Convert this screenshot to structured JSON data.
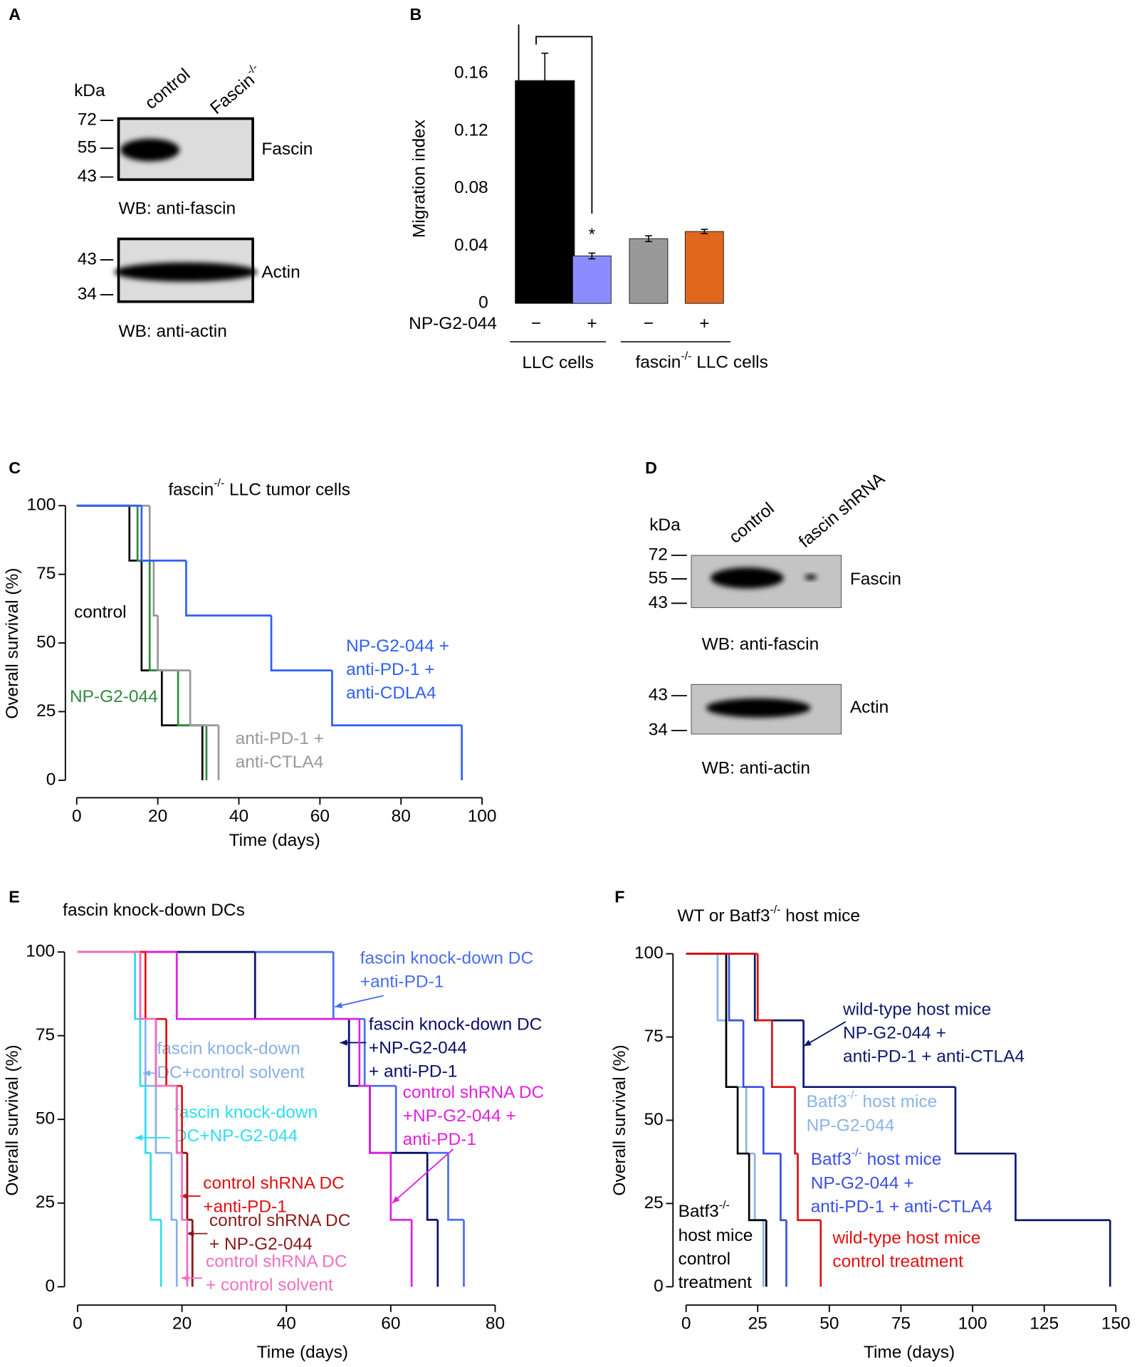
{
  "blots": [
    {
      "panel": "A",
      "kDa": "kDa",
      "lanes": [
        "control",
        {
          "before": "Fascin",
          "sup": "-/-"
        }
      ],
      "panes": [
        {
          "markers": [
            72,
            55,
            43
          ],
          "label": "Fascin",
          "caption": "WB: anti-fascin"
        },
        {
          "markers": [
            43,
            34
          ],
          "label": "Actin",
          "caption": "WB: anti-actin"
        }
      ]
    },
    {
      "panel": "D",
      "kDa": "kDa",
      "lanes": [
        "control",
        "fascin shRNA"
      ],
      "panes": [
        {
          "markers": [
            72,
            55,
            43
          ],
          "label": "Fascin",
          "caption": "WB: anti-fascin"
        },
        {
          "markers": [
            43,
            34
          ],
          "label": "Actin",
          "caption": "WB: anti-actin"
        }
      ]
    }
  ],
  "chart_data": [
    {
      "panel": "B",
      "type": "bar",
      "ylabel": "Migration index",
      "row_label": "NP-G2-044",
      "categories": [
        "−",
        "+",
        "−",
        "+"
      ],
      "values": [
        0.155,
        0.033,
        0.045,
        0.05
      ],
      "errors": [
        0.019,
        0.002,
        0.002,
        0.0015
      ],
      "colors": [
        "#000000",
        "#8c8cff",
        "#999999",
        "#e0681e"
      ],
      "groups": [
        "LLC cells",
        {
          "before": "fascin",
          "sup": "-/-",
          "after": " LLC cells"
        }
      ],
      "annotations": [
        "*"
      ],
      "ylim": [
        0,
        0.194
      ],
      "yticks": [
        0,
        0.04,
        0.08,
        0.12,
        0.16
      ]
    },
    {
      "panel": "C",
      "type": "survival",
      "title": {
        "before": "fascin",
        "sup": "-/-",
        "after": " LLC tumor cells"
      },
      "xlabel": "Time (days)",
      "ylabel": "Overall survival (%)",
      "xlim": [
        0,
        100
      ],
      "xticks": [
        0,
        20,
        40,
        60,
        80,
        100
      ],
      "ylim": [
        0,
        100
      ],
      "yticks": [
        0,
        25,
        50,
        75,
        100
      ],
      "series": [
        {
          "name": [
            "control"
          ],
          "color": "#000000",
          "x": [
            0,
            13,
            16,
            21,
            31
          ],
          "values": [
            100,
            80,
            40,
            20,
            0
          ]
        },
        {
          "name": [
            "NP-G2-044"
          ],
          "color": "#2e8b3e",
          "x": [
            0,
            15,
            18,
            25,
            32
          ],
          "values": [
            100,
            80,
            40,
            20,
            0
          ]
        },
        {
          "name": [
            "anti-PD-1 +",
            "anti-CTLA4"
          ],
          "color": "#999999",
          "x": [
            0,
            18,
            19,
            20,
            28,
            35
          ],
          "values": [
            100,
            80,
            60,
            40,
            20,
            0
          ]
        },
        {
          "name": [
            "NP-G2-044 +",
            "anti-PD-1 +",
            "anti-CDLA4"
          ],
          "color": "#2f5ff5",
          "x": [
            0,
            16,
            27,
            48,
            63,
            95
          ],
          "values": [
            100,
            80,
            60,
            40,
            20,
            0
          ]
        }
      ]
    },
    {
      "panel": "E",
      "type": "survival",
      "title": "fascin knock-down DCs",
      "xlabel": "Time (days)",
      "ylabel": "Overall survival (%)",
      "xlim": [
        0,
        80
      ],
      "xticks": [
        0,
        20,
        40,
        60,
        80
      ],
      "ylim": [
        0,
        100
      ],
      "yticks": [
        0,
        25,
        50,
        75,
        100
      ],
      "series": [
        {
          "name": [
            "fascin knock-down DC",
            "+anti-PD-1"
          ],
          "color": "#4a6cf0",
          "x": [
            0,
            49,
            55,
            61,
            71,
            74
          ],
          "values": [
            100,
            80,
            60,
            40,
            20,
            0
          ]
        },
        {
          "name": [
            "fascin knock-down DC",
            "+NP-G2-044",
            "+ anti-PD-1"
          ],
          "color": "#0c0c6a",
          "x": [
            0,
            34,
            52,
            56,
            67,
            69
          ],
          "values": [
            100,
            80,
            60,
            40,
            20,
            0
          ]
        },
        {
          "name": [
            "control shRNA DC",
            "+NP-G2-044 +",
            "anti-PD-1"
          ],
          "color": "#e020e0",
          "x": [
            0,
            19,
            54,
            56,
            60,
            64
          ],
          "values": [
            100,
            80,
            60,
            40,
            20,
            0
          ]
        },
        {
          "name": [
            "fascin knock-down",
            "DC+control solvent"
          ],
          "color": "#88b0e8",
          "x": [
            0,
            11,
            13,
            15,
            18,
            19
          ],
          "values": [
            100,
            80,
            60,
            40,
            20,
            0
          ]
        },
        {
          "name": [
            "fascin knock-down",
            "DC+NP-G2-044"
          ],
          "color": "#30dcf0",
          "x": [
            0,
            11,
            12,
            13,
            14,
            16
          ],
          "values": [
            100,
            80,
            60,
            40,
            20,
            0
          ]
        },
        {
          "name": [
            "control shRNA DC",
            "+anti-PD-1"
          ],
          "color": "#e01010",
          "x": [
            0,
            13,
            17,
            20,
            21,
            22
          ],
          "values": [
            100,
            80,
            60,
            40,
            20,
            0
          ]
        },
        {
          "name": [
            "control shRNA DC",
            "+ NP-G2-044"
          ],
          "color": "#8b1a1a",
          "x": [
            0,
            12,
            15,
            19,
            21,
            22
          ],
          "values": [
            100,
            80,
            60,
            40,
            20,
            0
          ]
        },
        {
          "name": [
            "control shRNA DC",
            "+ control solvent"
          ],
          "color": "#f070c0",
          "x": [
            0,
            12,
            15,
            19,
            20,
            21
          ],
          "values": [
            100,
            80,
            60,
            40,
            20,
            0
          ]
        }
      ]
    },
    {
      "panel": "F",
      "type": "survival",
      "title": {
        "before": "WT or Batf3",
        "sup": "-/-",
        "after": " host mice"
      },
      "xlabel": "Time (days)",
      "ylabel": "Overall survival (%)",
      "xlim": [
        0,
        150
      ],
      "xticks": [
        0,
        25,
        50,
        75,
        100,
        125,
        150
      ],
      "ylim": [
        0,
        100
      ],
      "yticks": [
        0,
        25,
        50,
        75,
        100
      ],
      "series": [
        {
          "name": [
            "wild-type host mice",
            "NP-G2-044 +",
            "anti-PD-1 + anti-CTLA4"
          ],
          "color": "#0c1a6a",
          "x": [
            0,
            24,
            41,
            94,
            115,
            148
          ],
          "values": [
            100,
            80,
            60,
            40,
            20,
            0
          ]
        },
        {
          "name": [
            {
              "before": "Batf3",
              "sup": "-/-",
              "after": " host mice"
            },
            "NP-G2-044"
          ],
          "color": "#8ab4e6",
          "x": [
            0,
            11,
            14,
            21,
            24,
            27
          ],
          "values": [
            100,
            80,
            60,
            40,
            20,
            0
          ]
        },
        {
          "name": [
            {
              "before": "Batf3",
              "sup": "-/-",
              "after": " host mice"
            },
            "NP-G2-044 +",
            "anti-PD-1 + anti-CTLA4"
          ],
          "color": "#3a50e6",
          "x": [
            0,
            15,
            20,
            27,
            33,
            35
          ],
          "values": [
            100,
            80,
            60,
            40,
            20,
            0
          ]
        },
        {
          "name": [
            {
              "before": "Batf3",
              "sup": "-/-"
            },
            "host mice",
            "control",
            "treatment"
          ],
          "color": "#000000",
          "x": [
            0,
            14,
            18,
            22,
            28
          ],
          "values": [
            100,
            60,
            40,
            20,
            0
          ]
        },
        {
          "name": [
            "wild-type host mice",
            "control treatment"
          ],
          "color": "#e01010",
          "x": [
            0,
            25,
            30,
            38,
            39,
            47
          ],
          "values": [
            100,
            80,
            60,
            40,
            20,
            0
          ]
        }
      ]
    }
  ]
}
